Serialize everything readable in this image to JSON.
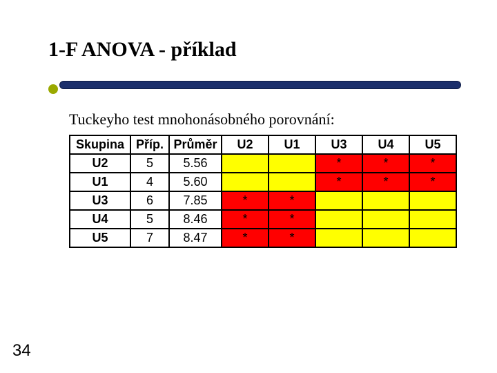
{
  "title": "1-F ANOVA - příklad",
  "subtitle": "Tuckeyho test mnohonásobného porovnání:",
  "page_number": "34",
  "colors": {
    "cell_yellow": "#ffff00",
    "cell_red": "#ff0000",
    "asterisk": "#000000",
    "border": "#000000",
    "bullet": "#9aa900",
    "rule": "#1b2f6b"
  },
  "table": {
    "columns": [
      "Skupina",
      "Příp.",
      "Průměr",
      "U2",
      "U1",
      "U3",
      "U4",
      "U5"
    ],
    "rows": [
      {
        "label": "U2",
        "prip": "5",
        "prumer": "5.56",
        "cells": [
          {
            "color": "yellow",
            "value": ""
          },
          {
            "color": "yellow",
            "value": ""
          },
          {
            "color": "red",
            "value": "*"
          },
          {
            "color": "red",
            "value": "*"
          },
          {
            "color": "red",
            "value": "*"
          }
        ]
      },
      {
        "label": "U1",
        "prip": "4",
        "prumer": "5.60",
        "cells": [
          {
            "color": "yellow",
            "value": ""
          },
          {
            "color": "yellow",
            "value": ""
          },
          {
            "color": "red",
            "value": "*"
          },
          {
            "color": "red",
            "value": "*"
          },
          {
            "color": "red",
            "value": "*"
          }
        ]
      },
      {
        "label": "U3",
        "prip": "6",
        "prumer": "7.85",
        "cells": [
          {
            "color": "red",
            "value": "*"
          },
          {
            "color": "red",
            "value": "*"
          },
          {
            "color": "yellow",
            "value": ""
          },
          {
            "color": "yellow",
            "value": ""
          },
          {
            "color": "yellow",
            "value": ""
          }
        ]
      },
      {
        "label": "U4",
        "prip": "5",
        "prumer": "8.46",
        "cells": [
          {
            "color": "red",
            "value": "*"
          },
          {
            "color": "red",
            "value": "*"
          },
          {
            "color": "yellow",
            "value": ""
          },
          {
            "color": "yellow",
            "value": ""
          },
          {
            "color": "yellow",
            "value": ""
          }
        ]
      },
      {
        "label": "U5",
        "prip": "7",
        "prumer": "8.47",
        "cells": [
          {
            "color": "red",
            "value": "*"
          },
          {
            "color": "red",
            "value": "*"
          },
          {
            "color": "yellow",
            "value": ""
          },
          {
            "color": "yellow",
            "value": ""
          },
          {
            "color": "yellow",
            "value": ""
          }
        ]
      }
    ]
  }
}
